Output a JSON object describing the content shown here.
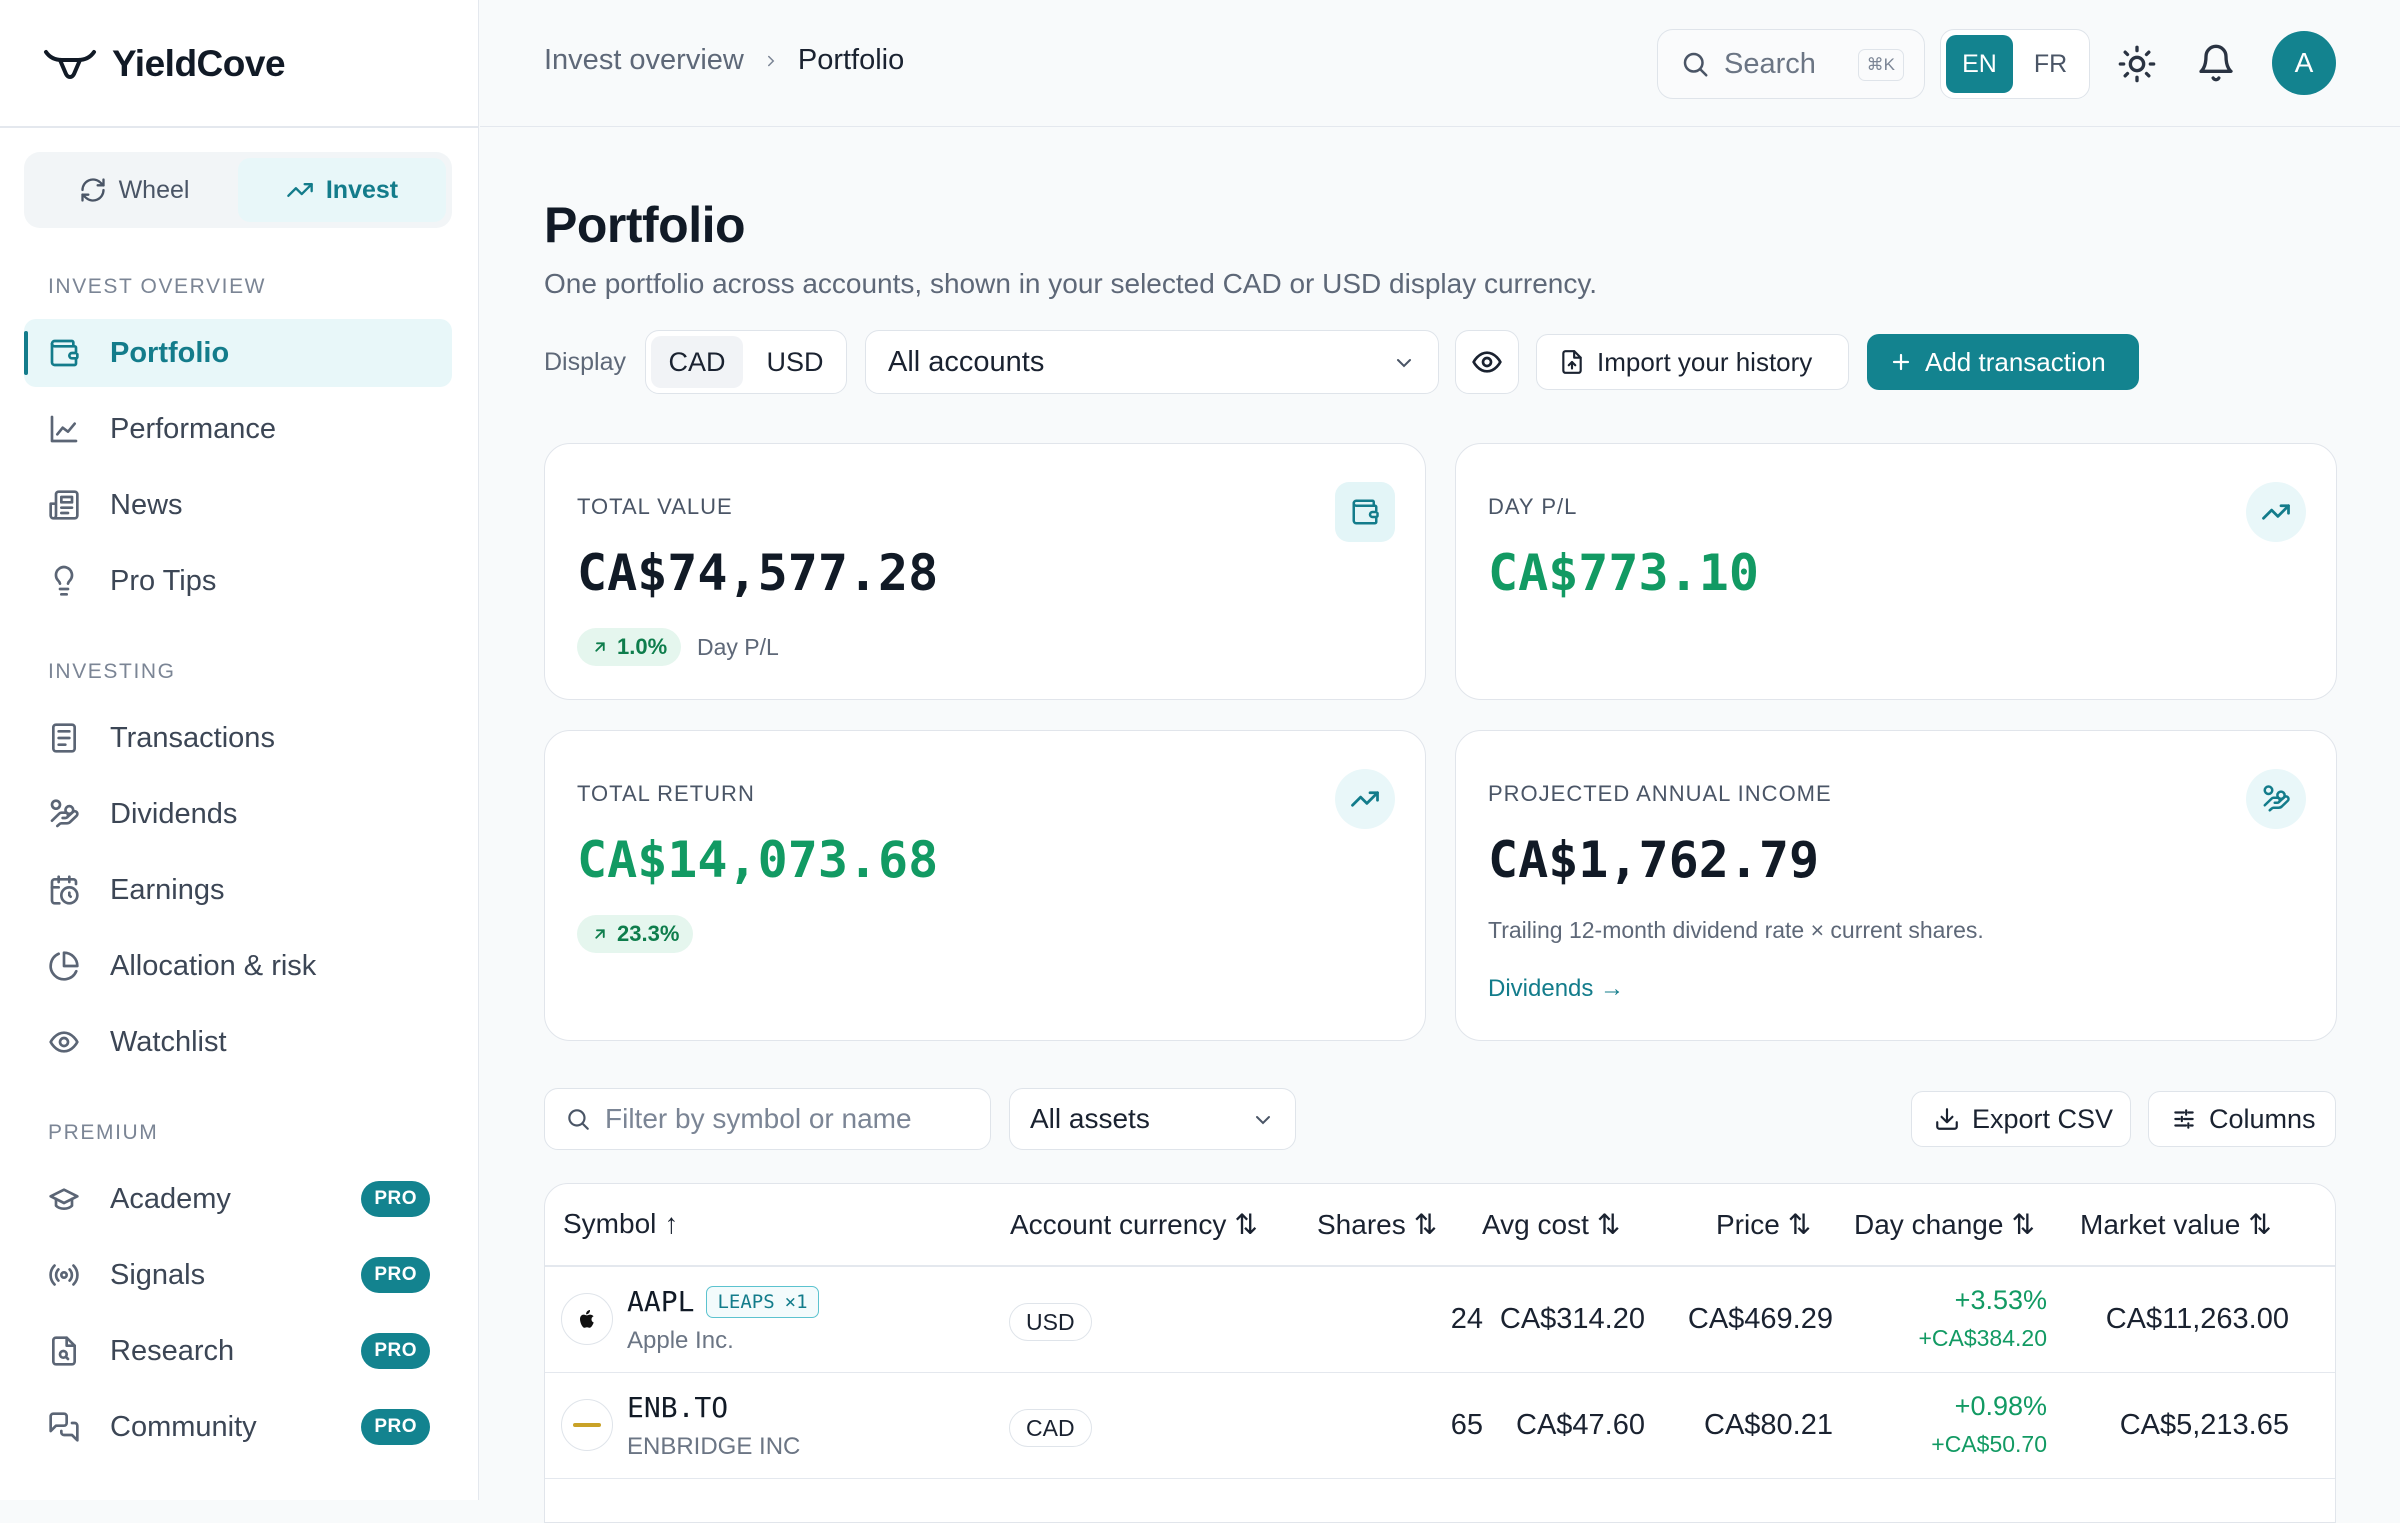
{
  "app": {
    "name": "YieldCove"
  },
  "sidebar": {
    "mode_switch": [
      {
        "label": "Wheel",
        "icon": "refresh-icon"
      },
      {
        "label": "Invest",
        "icon": "trending-up-icon",
        "active": true
      }
    ],
    "sections": [
      {
        "title": "INVEST OVERVIEW",
        "items": [
          {
            "label": "Portfolio",
            "icon": "wallet-icon",
            "active": true
          },
          {
            "label": "Performance",
            "icon": "line-chart-icon"
          },
          {
            "label": "News",
            "icon": "newspaper-icon"
          },
          {
            "label": "Pro Tips",
            "icon": "lightbulb-icon"
          }
        ]
      },
      {
        "title": "INVESTING",
        "items": [
          {
            "label": "Transactions",
            "icon": "receipt-icon"
          },
          {
            "label": "Dividends",
            "icon": "hand-coins-icon"
          },
          {
            "label": "Earnings",
            "icon": "calendar-clock-icon"
          },
          {
            "label": "Allocation & risk",
            "icon": "pie-chart-icon"
          },
          {
            "label": "Watchlist",
            "icon": "eye-icon"
          }
        ]
      },
      {
        "title": "PREMIUM",
        "items": [
          {
            "label": "Academy",
            "icon": "graduation-cap-icon",
            "badge": "PRO"
          },
          {
            "label": "Signals",
            "icon": "radio-icon",
            "badge": "PRO"
          },
          {
            "label": "Research",
            "icon": "file-search-icon",
            "badge": "PRO"
          },
          {
            "label": "Community",
            "icon": "messages-icon",
            "badge": "PRO"
          }
        ]
      }
    ]
  },
  "header": {
    "breadcrumb": [
      "Invest overview",
      "Portfolio"
    ],
    "search": {
      "label": "Search",
      "shortcut": "⌘K"
    },
    "languages": [
      {
        "label": "EN",
        "active": true
      },
      {
        "label": "FR"
      }
    ],
    "avatar_initial": "A"
  },
  "page": {
    "title": "Portfolio",
    "subtitle": "One portfolio across accounts, shown in your selected CAD or USD display currency.",
    "display_label": "Display",
    "currencies": [
      {
        "label": "CAD",
        "active": true
      },
      {
        "label": "USD"
      }
    ],
    "account_select": "All accounts",
    "import_label": "Import your history",
    "add_label": "Add transaction"
  },
  "cards": {
    "total_value": {
      "label": "TOTAL VALUE",
      "value": "CA$74,577.28",
      "change": "1.0%",
      "change_note": "Day P/L"
    },
    "day_pl": {
      "label": "DAY P/L",
      "value": "CA$773.10"
    },
    "total_return": {
      "label": "TOTAL RETURN",
      "value": "CA$14,073.68",
      "change": "23.3%"
    },
    "income": {
      "label": "PROJECTED ANNUAL INCOME",
      "value": "CA$1,762.79",
      "note": "Trailing 12-month dividend rate × current shares.",
      "link": "Dividends →"
    }
  },
  "table_controls": {
    "filter_placeholder": "Filter by symbol or name",
    "asset_select": "All assets",
    "export_label": "Export CSV",
    "columns_label": "Columns"
  },
  "table": {
    "columns": [
      {
        "label": "Symbol",
        "sort": "↑"
      },
      {
        "label": "Account currency",
        "sort": "⇅"
      },
      {
        "label": "Shares",
        "sort": "⇅"
      },
      {
        "label": "Avg cost",
        "sort": "⇅"
      },
      {
        "label": "Price",
        "sort": "⇅"
      },
      {
        "label": "Day change",
        "sort": "⇅"
      },
      {
        "label": "Market value",
        "sort": "⇅"
      }
    ],
    "rows": [
      {
        "symbol": "AAPL",
        "tag": "LEAPS",
        "tag_count": "×1",
        "name": "Apple Inc.",
        "currency": "USD",
        "shares": "24",
        "avg_cost": "CA$314.20",
        "price": "CA$469.29",
        "day_pct": "+3.53%",
        "day_abs": "+CA$384.20",
        "market_value": "CA$11,263.00"
      },
      {
        "symbol": "ENB.TO",
        "name": "ENBRIDGE INC",
        "currency": "CAD",
        "shares": "65",
        "avg_cost": "CA$47.60",
        "price": "CA$80.21",
        "day_pct": "+0.98%",
        "day_abs": "+CA$50.70",
        "market_value": "CA$5,213.65"
      }
    ]
  },
  "colors": {
    "accent": "#13838f",
    "positive": "#129a63",
    "text": "#1a2230"
  }
}
